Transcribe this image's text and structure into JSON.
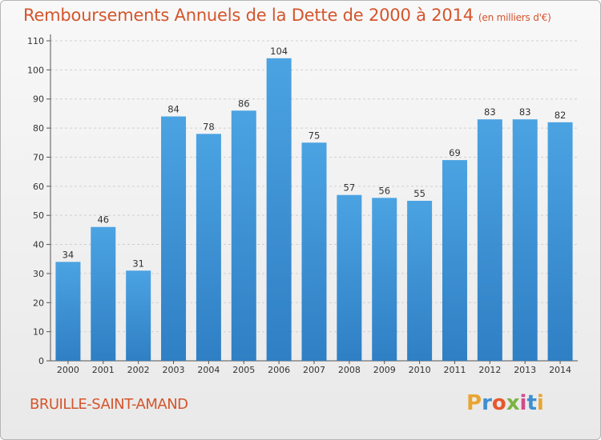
{
  "title": {
    "main": "Remboursements Annuels de la Dette de 2000 à 2014",
    "unit": "(en milliers d'€)"
  },
  "commune": "BRUILLE-SAINT-AMAND",
  "logo": {
    "letters": [
      "P",
      "r",
      "o",
      "x",
      "i",
      "t",
      "i"
    ],
    "colors": [
      "#e8a531",
      "#3d8fd1",
      "#e8572b",
      "#7cb342",
      "#d04b8b",
      "#3d8fd1",
      "#e8a531"
    ]
  },
  "colors": {
    "bar": "#4ba3e2",
    "bar_dark": "#2f7fc4",
    "title": "#d4552c"
  },
  "chart_data": {
    "type": "bar",
    "title": "Remboursements Annuels de la Dette de 2000 à 2014",
    "categories": [
      "2000",
      "2001",
      "2002",
      "2003",
      "2004",
      "2005",
      "2006",
      "2007",
      "2008",
      "2009",
      "2010",
      "2011",
      "2012",
      "2013",
      "2014"
    ],
    "values": [
      34,
      46,
      31,
      84,
      78,
      86,
      104,
      75,
      57,
      56,
      55,
      69,
      83,
      83,
      82
    ],
    "yticks": [
      0,
      10,
      20,
      30,
      40,
      50,
      60,
      70,
      80,
      90,
      100,
      110
    ],
    "ylim": [
      0,
      110
    ],
    "grid": true
  }
}
